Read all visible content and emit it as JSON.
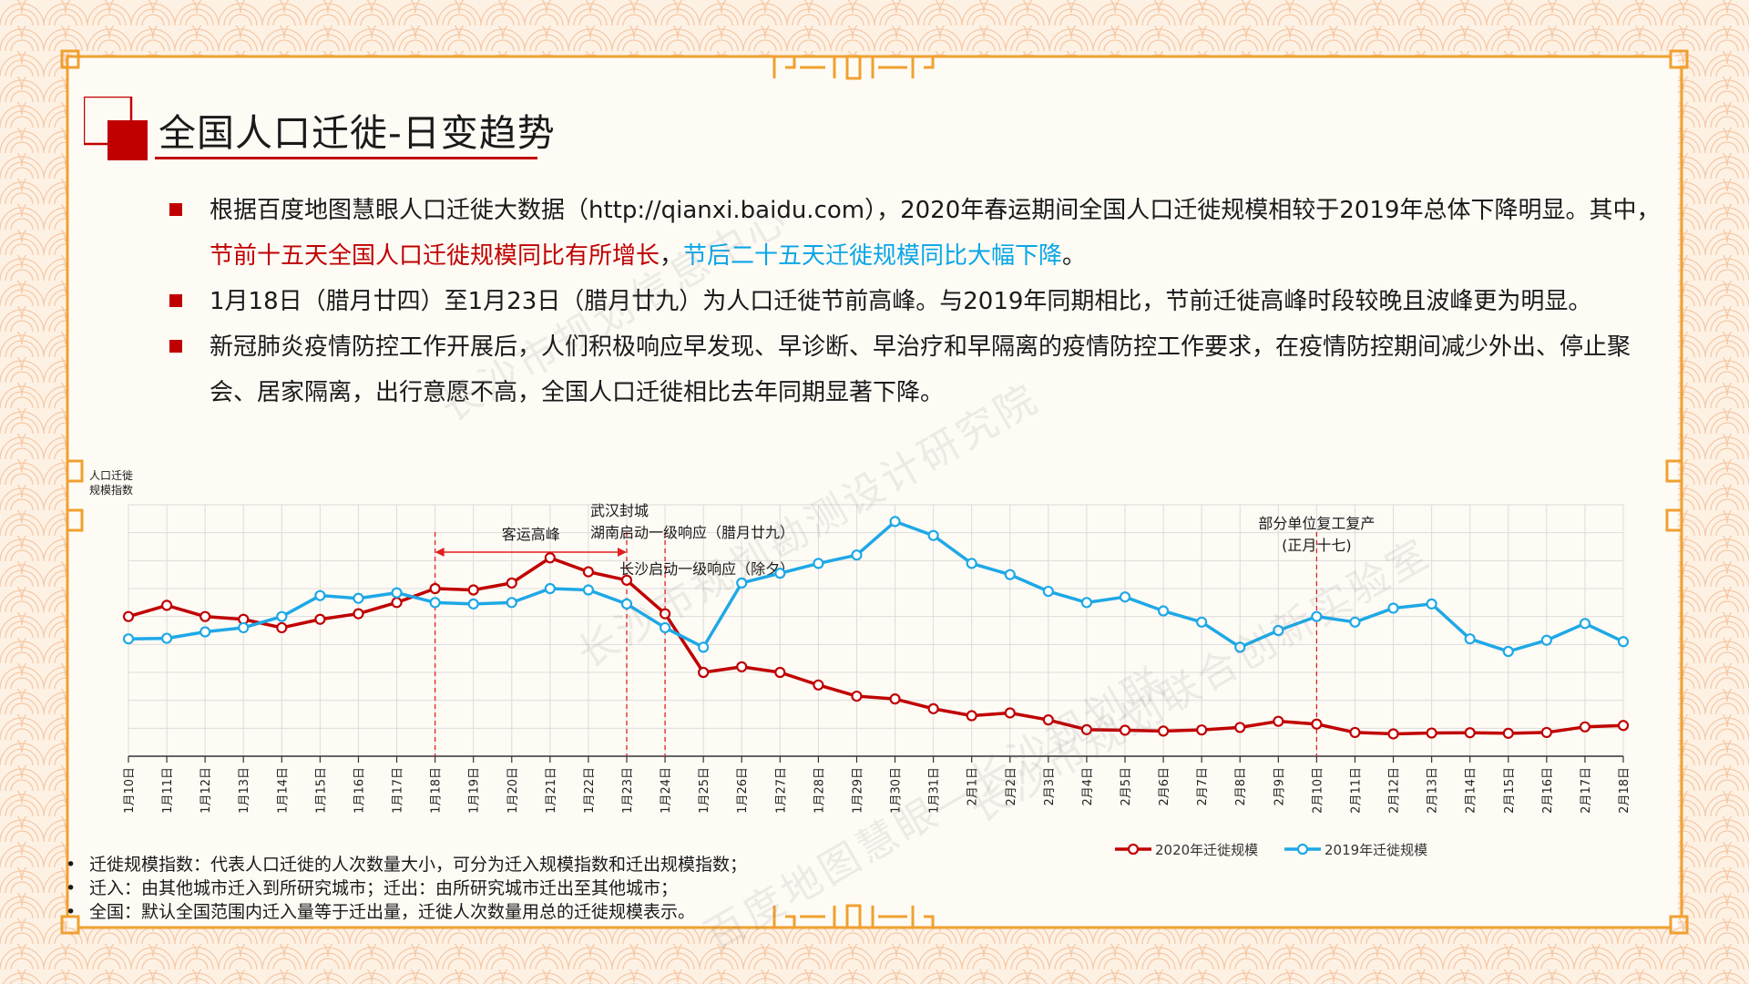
{
  "page": {
    "title": "全国人口迁徙-日变趋势",
    "bullets": [
      {
        "segments": [
          {
            "text": "根据百度地图慧眼人口迁徙大数据（http://qianxi.baidu.com），2020年春运期间全国人口迁徙规模相较于2019年总体下降明显。其中，",
            "style": "normal"
          },
          {
            "text": "节前十五天全国人口迁徙规模同比有所增长",
            "style": "red"
          },
          {
            "text": "，",
            "style": "normal"
          },
          {
            "text": "节后二十五天迁徙规模同比大幅下降",
            "style": "blue"
          },
          {
            "text": "。",
            "style": "normal"
          }
        ]
      },
      {
        "segments": [
          {
            "text": "1月18日（腊月廿四）至1月23日（腊月廿九）为人口迁徙节前高峰。与2019年同期相比，节前迁徙高峰时段较晚且波峰更为明显。",
            "style": "normal"
          }
        ]
      },
      {
        "segments": [
          {
            "text": "新冠肺炎疫情防控工作开展后，人们积极响应早发现、早诊断、早治疗和早隔离的疫情防控工作要求，在疫情防控期间减少外出、停止聚会、居家隔离，出行意愿不高，全国人口迁徙相比去年同期显著下降。",
            "style": "normal"
          }
        ]
      }
    ],
    "footnotes": [
      "迁徙规模指数：代表人口迁徙的人次数量大小，可分为迁入规模指数和迁出规模指数；",
      "迁入：由其他城市迁入到所研究城市；迁出：由所研究城市迁出至其他城市；",
      "全国：默认全国范围内迁入量等于迁出量，迁徙人次数量用总的迁徙规模表示。"
    ],
    "watermarks": [
      "长沙市规划信息中心",
      "长沙市规划勘测设计研究院",
      "长沙市规划联合创新实验室",
      "百度地图慧眼—长沙规划联"
    ]
  },
  "colors": {
    "accent_red": "#c00000",
    "series_2020": "#c00000",
    "series_2019": "#1ea8e6",
    "highlight_blue": "#0aa6e6",
    "frame_orange": "#f0a030"
  },
  "icons": [
    "title-square-mark-icon",
    "bullet-square-icon",
    "frame-corner-icon"
  ],
  "chart_data": {
    "type": "line",
    "ylabel": "人口迁徙\n规模指数",
    "ylim": [
      0,
      9
    ],
    "grid": true,
    "legend_position": "bottom-right",
    "categories": [
      "1月10日",
      "1月11日",
      "1月12日",
      "1月13日",
      "1月14日",
      "1月15日",
      "1月16日",
      "1月17日",
      "1月18日",
      "1月19日",
      "1月20日",
      "1月21日",
      "1月22日",
      "1月23日",
      "1月24日",
      "1月25日",
      "1月26日",
      "1月27日",
      "1月28日",
      "1月29日",
      "1月30日",
      "1月31日",
      "2月1日",
      "2月2日",
      "2月3日",
      "2月4日",
      "2月5日",
      "2月6日",
      "2月7日",
      "2月8日",
      "2月9日",
      "2月10日",
      "2月11日",
      "2月12日",
      "2月13日",
      "2月14日",
      "2月15日",
      "2月16日",
      "2月17日",
      "2月18日"
    ],
    "series": [
      {
        "name": "2020年迁徙规模",
        "color": "#c00000",
        "values": [
          5.0,
          5.4,
          5.0,
          4.9,
          4.6,
          4.9,
          5.1,
          5.5,
          6.0,
          5.95,
          6.2,
          7.1,
          6.6,
          6.3,
          5.1,
          3.0,
          3.2,
          3.0,
          2.55,
          2.15,
          2.05,
          1.7,
          1.45,
          1.55,
          1.3,
          0.95,
          0.93,
          0.9,
          0.94,
          1.03,
          1.25,
          1.15,
          0.85,
          0.8,
          0.83,
          0.84,
          0.82,
          0.85,
          1.05,
          1.1
        ]
      },
      {
        "name": "2019年迁徙规模",
        "color": "#1ea8e6",
        "values": [
          4.2,
          4.22,
          4.45,
          4.6,
          5.0,
          5.75,
          5.65,
          5.85,
          5.5,
          5.45,
          5.5,
          6.0,
          5.95,
          5.45,
          4.6,
          3.9,
          6.2,
          6.55,
          6.9,
          7.2,
          8.4,
          7.9,
          6.9,
          6.5,
          5.9,
          5.5,
          5.7,
          5.2,
          4.8,
          3.9,
          4.5,
          5.0,
          4.8,
          5.3,
          5.45,
          4.2,
          3.75,
          4.15,
          4.75,
          4.1
        ]
      }
    ],
    "annotations": [
      {
        "text": "客运高峰",
        "type": "span",
        "from": "1月18日",
        "to": "1月23日"
      },
      {
        "text": "武汉封城",
        "type": "vline",
        "at": "1月23日"
      },
      {
        "text": "湖南启动一级响应（腊月廿九）",
        "type": "vline",
        "at": "1月23日"
      },
      {
        "text": "长沙启动一级响应（除夕）",
        "type": "vline",
        "at": "1月24日"
      },
      {
        "text": "部分单位复工复产",
        "type": "vline",
        "at": "2月10日"
      },
      {
        "text": "(正月十七)",
        "type": "vline",
        "at": "2月10日"
      }
    ]
  }
}
